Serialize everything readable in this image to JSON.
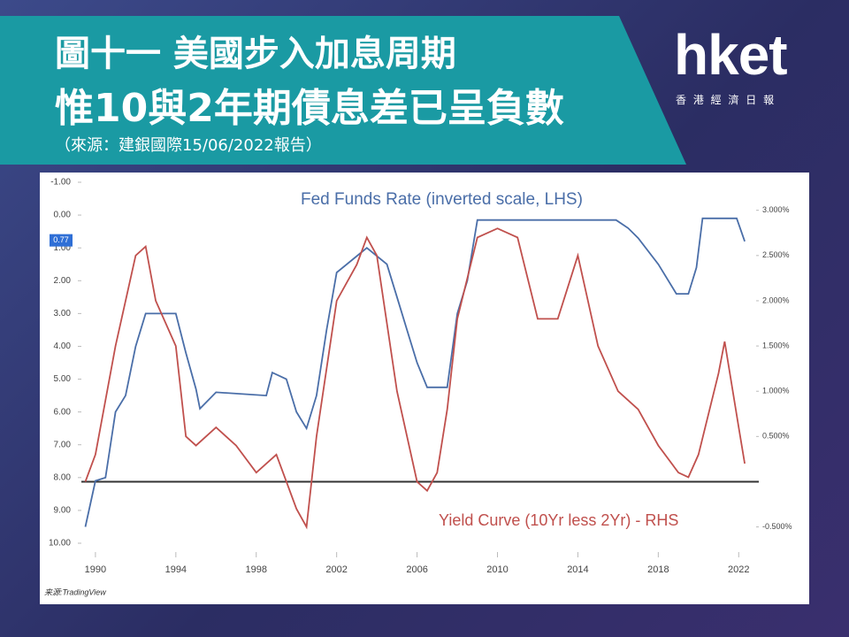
{
  "header": {
    "title_line1": "圖十一 美國步入加息周期",
    "title_line2": "惟10與2年期債息差已呈負數",
    "source": "（來源：建銀國際15/06/2022報告）"
  },
  "logo": {
    "brand": "hket",
    "subtitle": "香 港 經 濟 日 報"
  },
  "chart_data": {
    "type": "line",
    "credit": "来源:TradingView",
    "xlim": [
      1989.3,
      2023
    ],
    "xticks": [
      1990,
      1994,
      1998,
      2002,
      2006,
      2010,
      2014,
      2018,
      2022
    ],
    "ylim": [
      -1,
      10
    ],
    "yticks": [
      {
        "value": -1,
        "label": "-1.00"
      },
      {
        "value": 0,
        "label": "0.00"
      },
      {
        "value": 1,
        "label": "1.00"
      },
      {
        "value": 2,
        "label": "2.00"
      },
      {
        "value": 3,
        "label": "3.00"
      },
      {
        "value": 4,
        "label": "4.00"
      },
      {
        "value": 5,
        "label": "5.00"
      },
      {
        "value": 6,
        "label": "6.00"
      },
      {
        "value": 7,
        "label": "7.00"
      },
      {
        "value": 8,
        "label": "8.00"
      },
      {
        "value": 9,
        "label": "9.00"
      },
      {
        "value": 10,
        "label": "10.00"
      }
    ],
    "y_inverted": true,
    "y2lim": [
      -0.68,
      3.31
    ],
    "y2ticks": [
      {
        "value": 3,
        "label": "3.000%"
      },
      {
        "value": 2.5,
        "label": "2.500%"
      },
      {
        "value": 2,
        "label": "2.000%"
      },
      {
        "value": 1.5,
        "label": "1.500%"
      },
      {
        "value": 1,
        "label": "1.000%"
      },
      {
        "value": 0.5,
        "label": "0.500%"
      },
      {
        "value": -0.5,
        "label": "-0.500%"
      }
    ],
    "last_value": {
      "value": 0.77,
      "label": "0.77"
    },
    "series": [
      {
        "name": "Fed Funds Rate  (inverted scale, LHS)",
        "color": "#4a6ea8",
        "axis": "y",
        "x": [
          1989.5,
          1990,
          1990.5,
          1991,
          1991.5,
          1992,
          1992.5,
          1993.5,
          1994,
          1994.5,
          1995,
          1995.2,
          1996,
          1998.5,
          1998.8,
          1999.5,
          2000,
          2000.5,
          2001,
          2001.5,
          2002,
          2003,
          2003.5,
          2004.5,
          2005,
          2005.5,
          2006,
          2006.5,
          2007.5,
          2008,
          2008.5,
          2009,
          2015.9,
          2016.5,
          2017,
          2018,
          2018.9,
          2019.5,
          2019.9,
          2020.2,
          2021.9,
          2022.3
        ],
        "values": [
          9.5,
          8.1,
          8.0,
          6.0,
          5.5,
          4.0,
          3.0,
          3.0,
          3.0,
          4.2,
          5.3,
          5.9,
          5.4,
          5.5,
          4.8,
          5.0,
          6.0,
          6.5,
          5.5,
          3.5,
          1.75,
          1.25,
          1.0,
          1.5,
          2.5,
          3.5,
          4.5,
          5.25,
          5.25,
          3.0,
          2.0,
          0.15,
          0.15,
          0.4,
          0.7,
          1.5,
          2.4,
          2.4,
          1.6,
          0.1,
          0.1,
          0.8
        ]
      },
      {
        "name": "Yield Curve (10Yr less 2Yr) - RHS",
        "color": "#c0504d",
        "axis": "y2",
        "x": [
          1989.5,
          1990,
          1991,
          1992,
          1992.5,
          1993,
          1994,
          1994.5,
          1995,
          1996,
          1997,
          1998,
          1999,
          2000,
          2000.5,
          2001,
          2002,
          2003,
          2003.5,
          2004,
          2005,
          2006,
          2006.5,
          2007,
          2007.5,
          2008,
          2009,
          2010,
          2011,
          2012,
          2013,
          2014,
          2015,
          2016,
          2017,
          2018,
          2019,
          2019.5,
          2020,
          2021,
          2021.3,
          2022,
          2022.3
        ],
        "values": [
          0.0,
          0.3,
          1.5,
          2.5,
          2.6,
          2.0,
          1.5,
          0.5,
          0.4,
          0.6,
          0.4,
          0.1,
          0.3,
          -0.3,
          -0.5,
          0.5,
          2.0,
          2.4,
          2.7,
          2.5,
          1.0,
          0.0,
          -0.1,
          0.1,
          0.8,
          1.8,
          2.7,
          2.8,
          2.7,
          1.8,
          1.8,
          2.5,
          1.5,
          1.0,
          0.8,
          0.4,
          0.1,
          0.05,
          0.3,
          1.2,
          1.55,
          0.6,
          0.2
        ]
      }
    ]
  }
}
